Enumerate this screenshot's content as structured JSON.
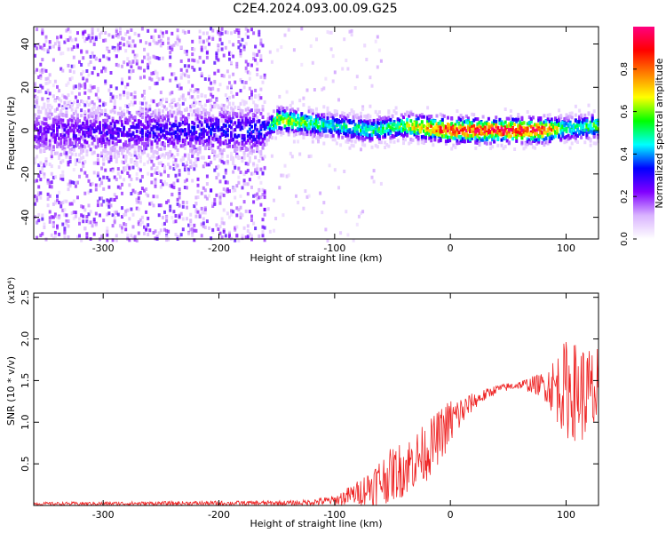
{
  "title": "C2E4.2024.093.00.09.G25",
  "chart_data": [
    {
      "type": "heatmap",
      "xlabel": "Height of straight line (km)",
      "ylabel": "Frequency (Hz)",
      "xlim": [
        -360,
        128
      ],
      "ylim": [
        -50,
        48
      ],
      "xticks": [
        -300,
        -200,
        -100,
        0,
        100
      ],
      "yticks": [
        -40,
        -20,
        0,
        20,
        40
      ],
      "colorbar": {
        "label": "Normalized spectral amplitude",
        "range": [
          0,
          1
        ],
        "ticks": [
          0.0,
          0.2,
          0.4,
          0.6,
          0.8
        ],
        "colors": [
          "#ffffff",
          "#d9b3ff",
          "#8000ff",
          "#0000ff",
          "#00ffff",
          "#00ff00",
          "#ffff00",
          "#ff8000",
          "#ff0000",
          "#ff0080"
        ]
      },
      "band_center_hz": [
        {
          "x": -360,
          "y": 0
        },
        {
          "x": -160,
          "y": 1
        },
        {
          "x": -150,
          "y": 6
        },
        {
          "x": -120,
          "y": 4
        },
        {
          "x": -100,
          "y": 3
        },
        {
          "x": -70,
          "y": 1
        },
        {
          "x": -40,
          "y": 3
        },
        {
          "x": 0,
          "y": 1
        },
        {
          "x": 80,
          "y": 1
        },
        {
          "x": 128,
          "y": 3
        }
      ],
      "peak_amplitude": [
        {
          "x": -360,
          "v": 0.25
        },
        {
          "x": -160,
          "v": 0.35
        },
        {
          "x": -150,
          "v": 0.7
        },
        {
          "x": -100,
          "v": 0.5
        },
        {
          "x": -50,
          "v": 0.55
        },
        {
          "x": -20,
          "v": 0.8
        },
        {
          "x": 0,
          "v": 0.95
        },
        {
          "x": 80,
          "v": 0.95
        },
        {
          "x": 100,
          "v": 0.5
        },
        {
          "x": 128,
          "v": 0.6
        }
      ]
    },
    {
      "type": "line",
      "xlabel": "Height of straight line (km)",
      "ylabel": "SNR (10 * v/v)",
      "yscale_label": "(x10⁴)",
      "xlim": [
        -360,
        128
      ],
      "ylim": [
        0,
        2.55
      ],
      "xticks": [
        -300,
        -200,
        -100,
        0,
        100
      ],
      "yticks": [
        0.5,
        1.0,
        1.5,
        2.0,
        2.5
      ],
      "color": "#ee2222",
      "envelope": [
        {
          "x": -360,
          "mean": 0.02,
          "spread": 0.02
        },
        {
          "x": -130,
          "mean": 0.03,
          "spread": 0.03
        },
        {
          "x": -100,
          "mean": 0.06,
          "spread": 0.06
        },
        {
          "x": -80,
          "mean": 0.15,
          "spread": 0.15
        },
        {
          "x": -60,
          "mean": 0.3,
          "spread": 0.3
        },
        {
          "x": -40,
          "mean": 0.45,
          "spread": 0.35
        },
        {
          "x": -20,
          "mean": 0.65,
          "spread": 0.35
        },
        {
          "x": 0,
          "mean": 1.0,
          "spread": 0.3
        },
        {
          "x": 20,
          "mean": 1.25,
          "spread": 0.1
        },
        {
          "x": 40,
          "mean": 1.4,
          "spread": 0.05
        },
        {
          "x": 60,
          "mean": 1.45,
          "spread": 0.05
        },
        {
          "x": 80,
          "mean": 1.45,
          "spread": 0.15
        },
        {
          "x": 100,
          "mean": 1.4,
          "spread": 0.6
        },
        {
          "x": 128,
          "mean": 1.3,
          "spread": 0.6
        }
      ]
    }
  ]
}
